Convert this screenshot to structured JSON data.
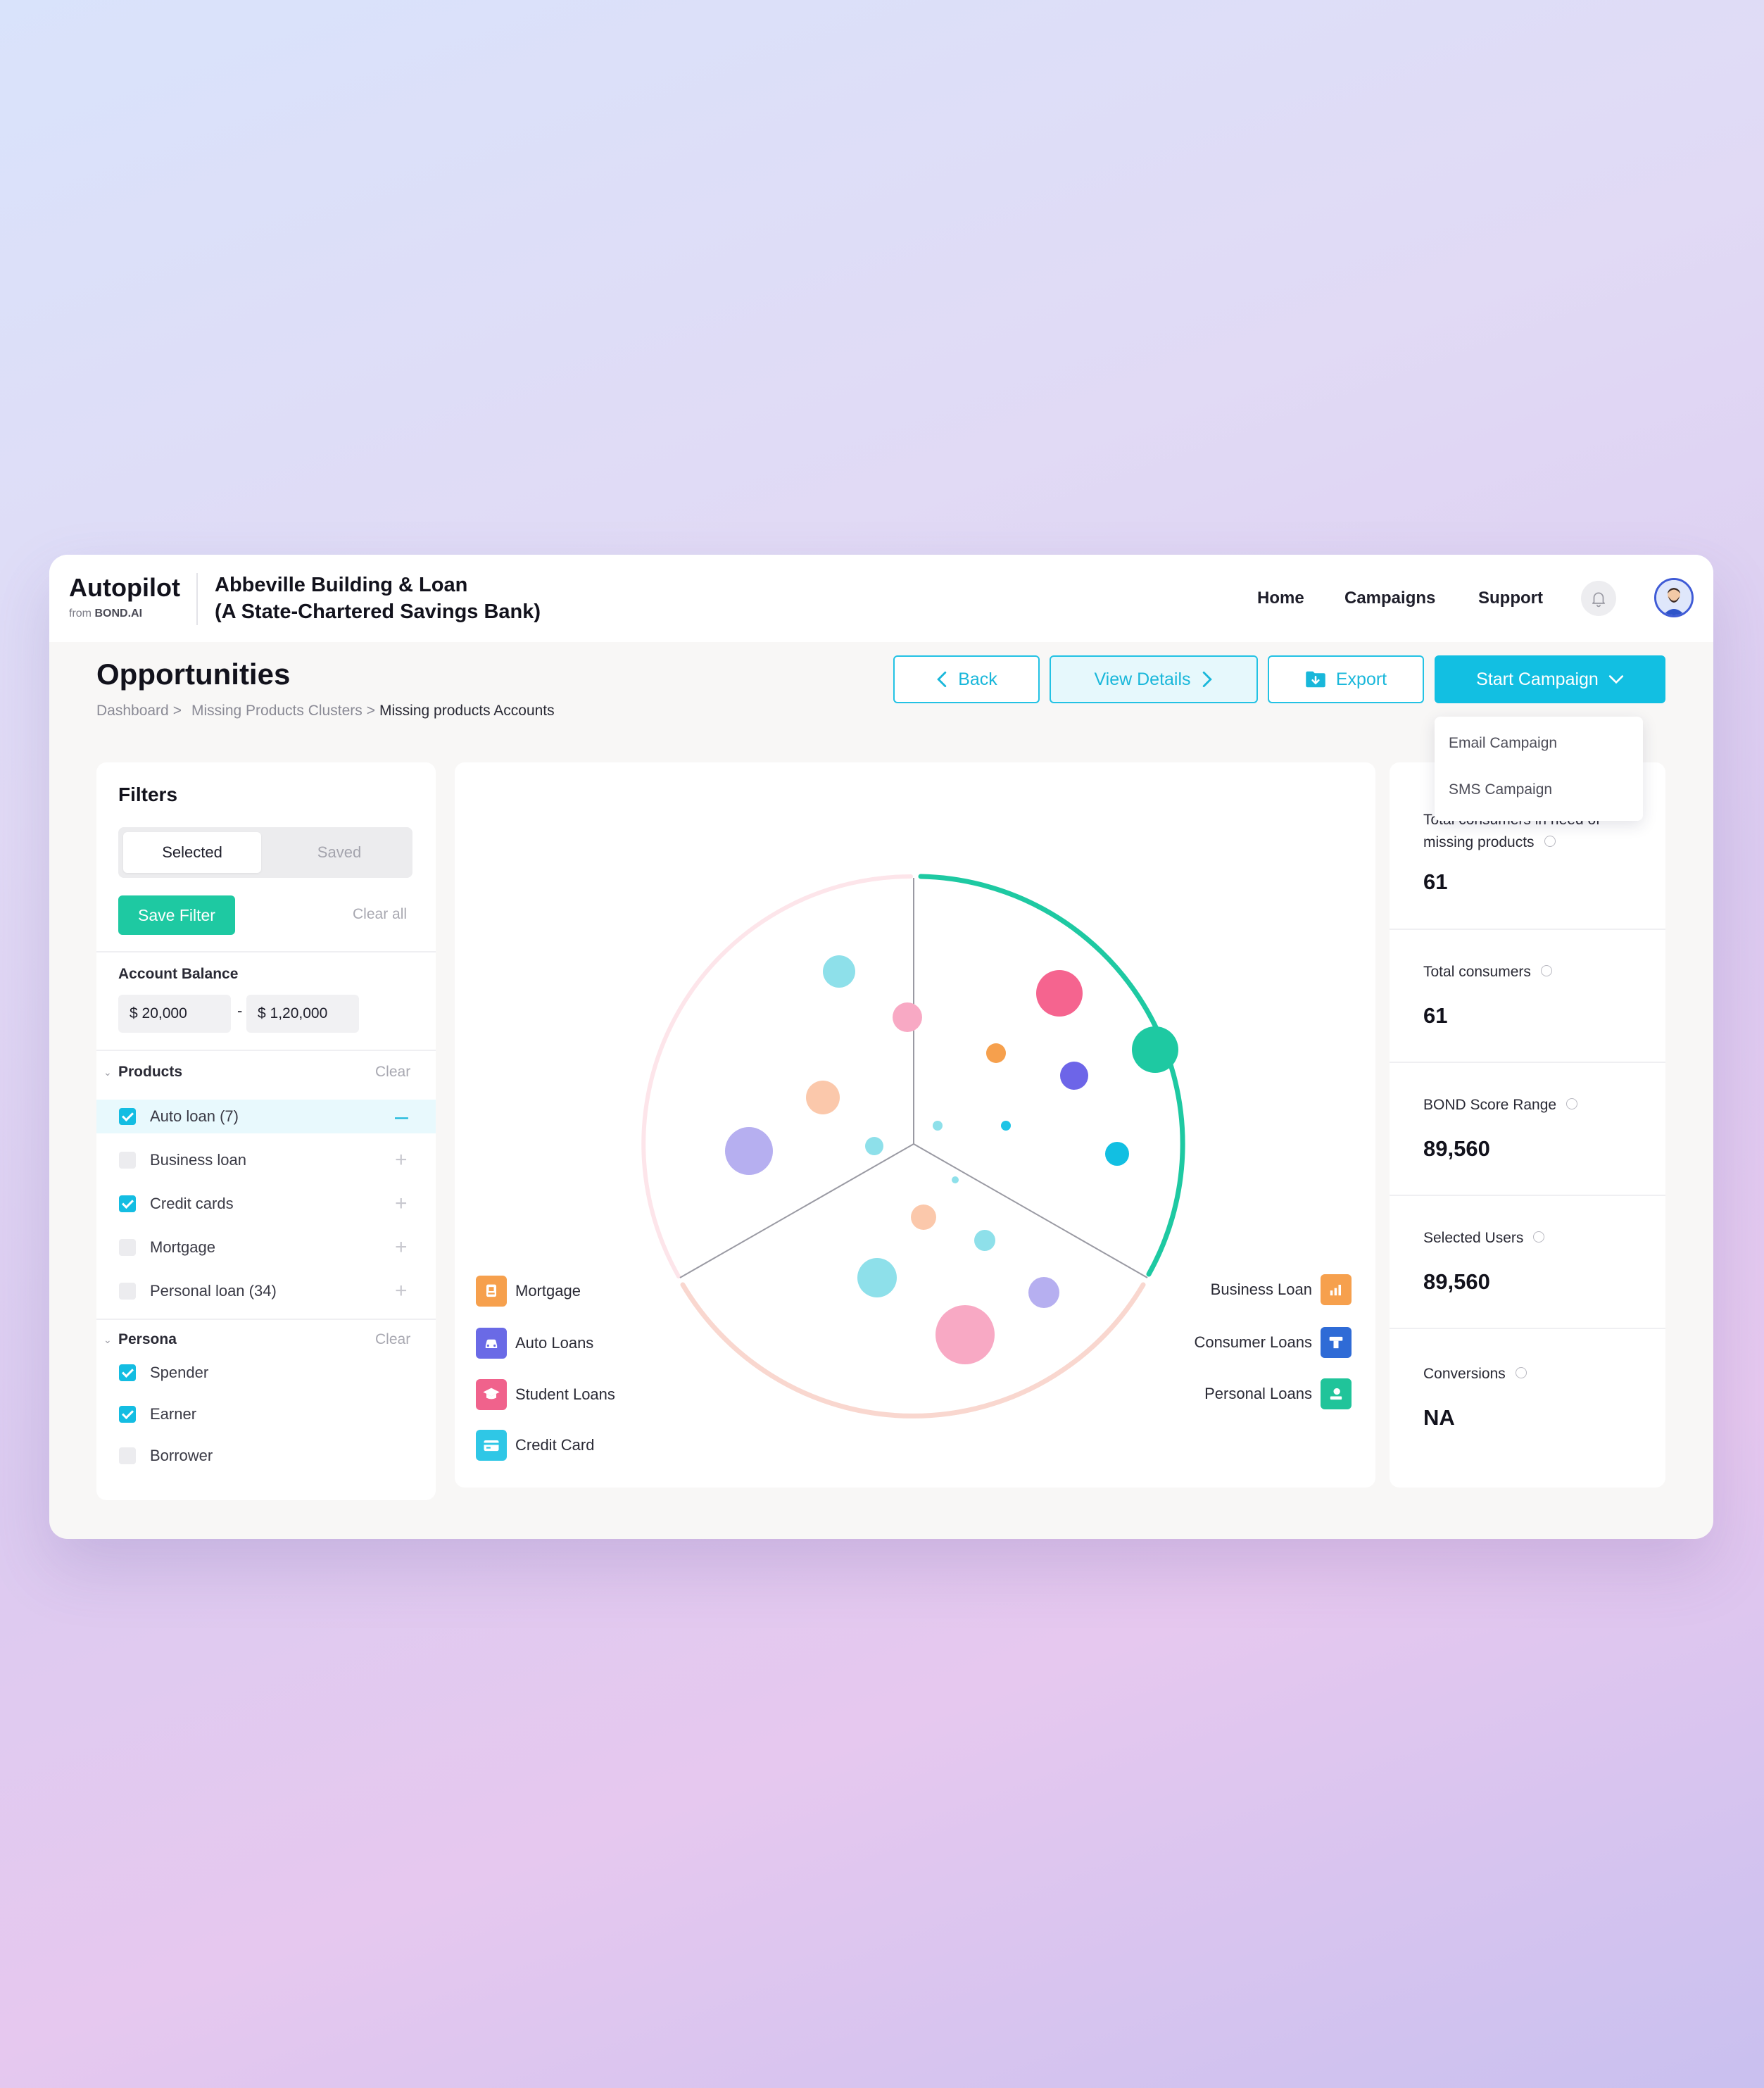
{
  "brand": {
    "name": "Autopilot",
    "from": "from",
    "company": "BOND.AI"
  },
  "bank": {
    "line1": "Abbeville Building & Loan",
    "line2": "(A State-Chartered Savings Bank)"
  },
  "nav": {
    "home": "Home",
    "campaigns": "Campaigns",
    "support": "Support"
  },
  "page": {
    "title": "Opportunities",
    "breadcrumb": [
      "Dashboard",
      "Missing Products Clusters",
      "Missing products Accounts"
    ],
    "separator": ">"
  },
  "actions": {
    "back": "Back",
    "view_details": "View Details",
    "export": "Export",
    "start_campaign": "Start Campaign"
  },
  "campaign_menu": [
    "Email Campaign",
    "SMS Campaign"
  ],
  "filters": {
    "title": "Filters",
    "tabs": {
      "selected": "Selected",
      "saved": "Saved"
    },
    "save_filter": "Save Filter",
    "clear_all": "Clear all",
    "account_balance": {
      "label": "Account Balance",
      "min": "$ 20,000",
      "dash": "-",
      "max": "$ 1,20,000"
    },
    "products": {
      "label": "Products",
      "clear": "Clear",
      "items": [
        {
          "label": "Auto loan (7)",
          "checked": true
        },
        {
          "label": "Business loan",
          "checked": false
        },
        {
          "label": "Credit cards",
          "checked": true
        },
        {
          "label": "Mortgage",
          "checked": false
        },
        {
          "label": "Personal loan (34)",
          "checked": false
        }
      ]
    },
    "persona": {
      "label": "Persona",
      "clear": "Clear",
      "items": [
        {
          "label": "Spender",
          "checked": true
        },
        {
          "label": "Earner",
          "checked": true
        },
        {
          "label": "Borrower",
          "checked": false
        }
      ]
    }
  },
  "legend": {
    "left": [
      {
        "label": "Mortgage",
        "icon": "mortgage-icon",
        "color": "#f6a04d"
      },
      {
        "label": "Auto Loans",
        "icon": "car-icon",
        "color": "#6a6ae6"
      },
      {
        "label": "Student Loans",
        "icon": "graduation-icon",
        "color": "#f0628c"
      },
      {
        "label": "Credit Card",
        "icon": "credit-card-icon",
        "color": "#2fc7e6"
      }
    ],
    "right": [
      {
        "label": "Business Loan",
        "icon": "business-chart-icon",
        "color": "#f6a04d"
      },
      {
        "label": "Consumer Loans",
        "icon": "consumer-loan-icon",
        "color": "#2f6bd6"
      },
      {
        "label": "Personal Loans",
        "icon": "personal-loan-icon",
        "color": "#20c49a"
      }
    ]
  },
  "stats": [
    {
      "label": "Total consumers in need of missing products",
      "value": "61"
    },
    {
      "label": "Total consumers",
      "value": "61"
    },
    {
      "label": "BOND Score Range",
      "value": "89,560"
    },
    {
      "label": "Selected Users",
      "value": "89,560"
    },
    {
      "label": "Conversions",
      "value": "NA"
    }
  ],
  "colors": {
    "accent": "#12bfe2",
    "success": "#1ec9a2"
  }
}
